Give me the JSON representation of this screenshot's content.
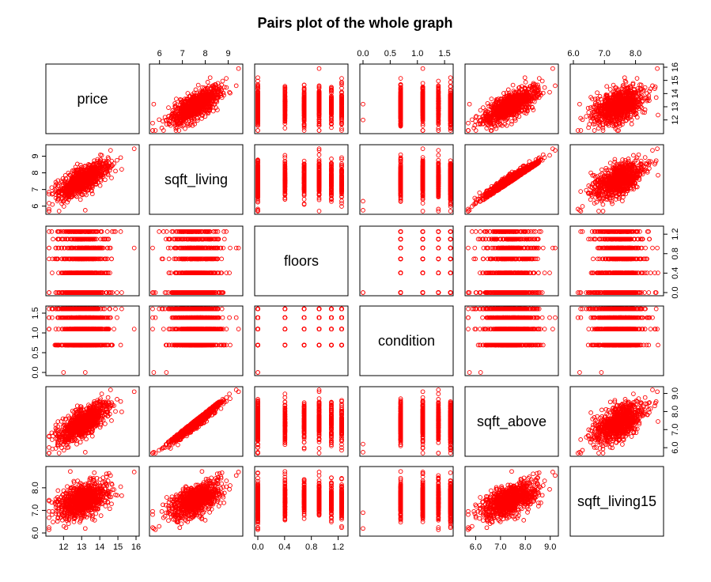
{
  "chart_data": {
    "type": "scatter",
    "chart_kind": "pairs-matrix",
    "title": "Pairs plot of the whole graph",
    "point_color": "#ff0000",
    "point_shape": "open-circle",
    "grid": false,
    "variables": [
      {
        "name": "price",
        "range": [
          11.2,
          16.0
        ],
        "ticks": [
          "12",
          "13",
          "14",
          "15",
          "16"
        ],
        "tick_values": [
          12,
          13,
          14,
          15,
          16
        ]
      },
      {
        "name": "sqft_living",
        "range": [
          5.7,
          9.5
        ],
        "ticks": [
          "6",
          "7",
          "8",
          "9"
        ],
        "tick_values": [
          6,
          7,
          8,
          9
        ]
      },
      {
        "name": "floors",
        "range": [
          0.0,
          1.3
        ],
        "ticks": [
          "0.0",
          "0.4",
          "0.8",
          "1.2"
        ],
        "tick_values": [
          0.0,
          0.4,
          0.8,
          1.2
        ]
      },
      {
        "name": "condition",
        "range": [
          0.0,
          1.6
        ],
        "ticks": [
          "0.0",
          "0.5",
          "1.0",
          "1.5"
        ],
        "tick_values": [
          0.0,
          0.5,
          1.0,
          1.5
        ]
      },
      {
        "name": "sqft_above",
        "range": [
          5.7,
          9.2
        ],
        "ticks": [
          "6.0",
          "7.0",
          "8.0",
          "9.0"
        ],
        "tick_values": [
          6.0,
          7.0,
          8.0,
          9.0
        ]
      },
      {
        "name": "sqft_living15",
        "range": [
          6.0,
          8.8
        ],
        "ticks": [
          "6.0",
          "7.0",
          "8.0"
        ],
        "tick_values": [
          6.0,
          7.0,
          8.0
        ]
      }
    ],
    "discrete_levels": {
      "floors": [
        0.0,
        0.405,
        0.693,
        0.916,
        1.099,
        1.253
      ],
      "condition": [
        0.0,
        0.693,
        1.099,
        1.386,
        1.609
      ]
    },
    "pair_summary": {
      "price_vs_sqft_living": "strong positive correlation",
      "sqft_living_vs_sqft_above": "very strong positive linear correlation",
      "price_vs_sqft_living15": "moderate positive correlation",
      "sqft_living_vs_sqft_living15": "moderate positive correlation",
      "sqft_above_vs_sqft_living15": "moderate positive correlation"
    },
    "axes_layout": {
      "top": [
        "sqft_living",
        "condition",
        "sqft_living15"
      ],
      "right": [
        "price",
        "floors",
        "sqft_above"
      ],
      "bottom": [
        "price",
        "floors",
        "sqft_above"
      ],
      "left": [
        "sqft_living",
        "condition",
        "sqft_living15"
      ]
    }
  }
}
